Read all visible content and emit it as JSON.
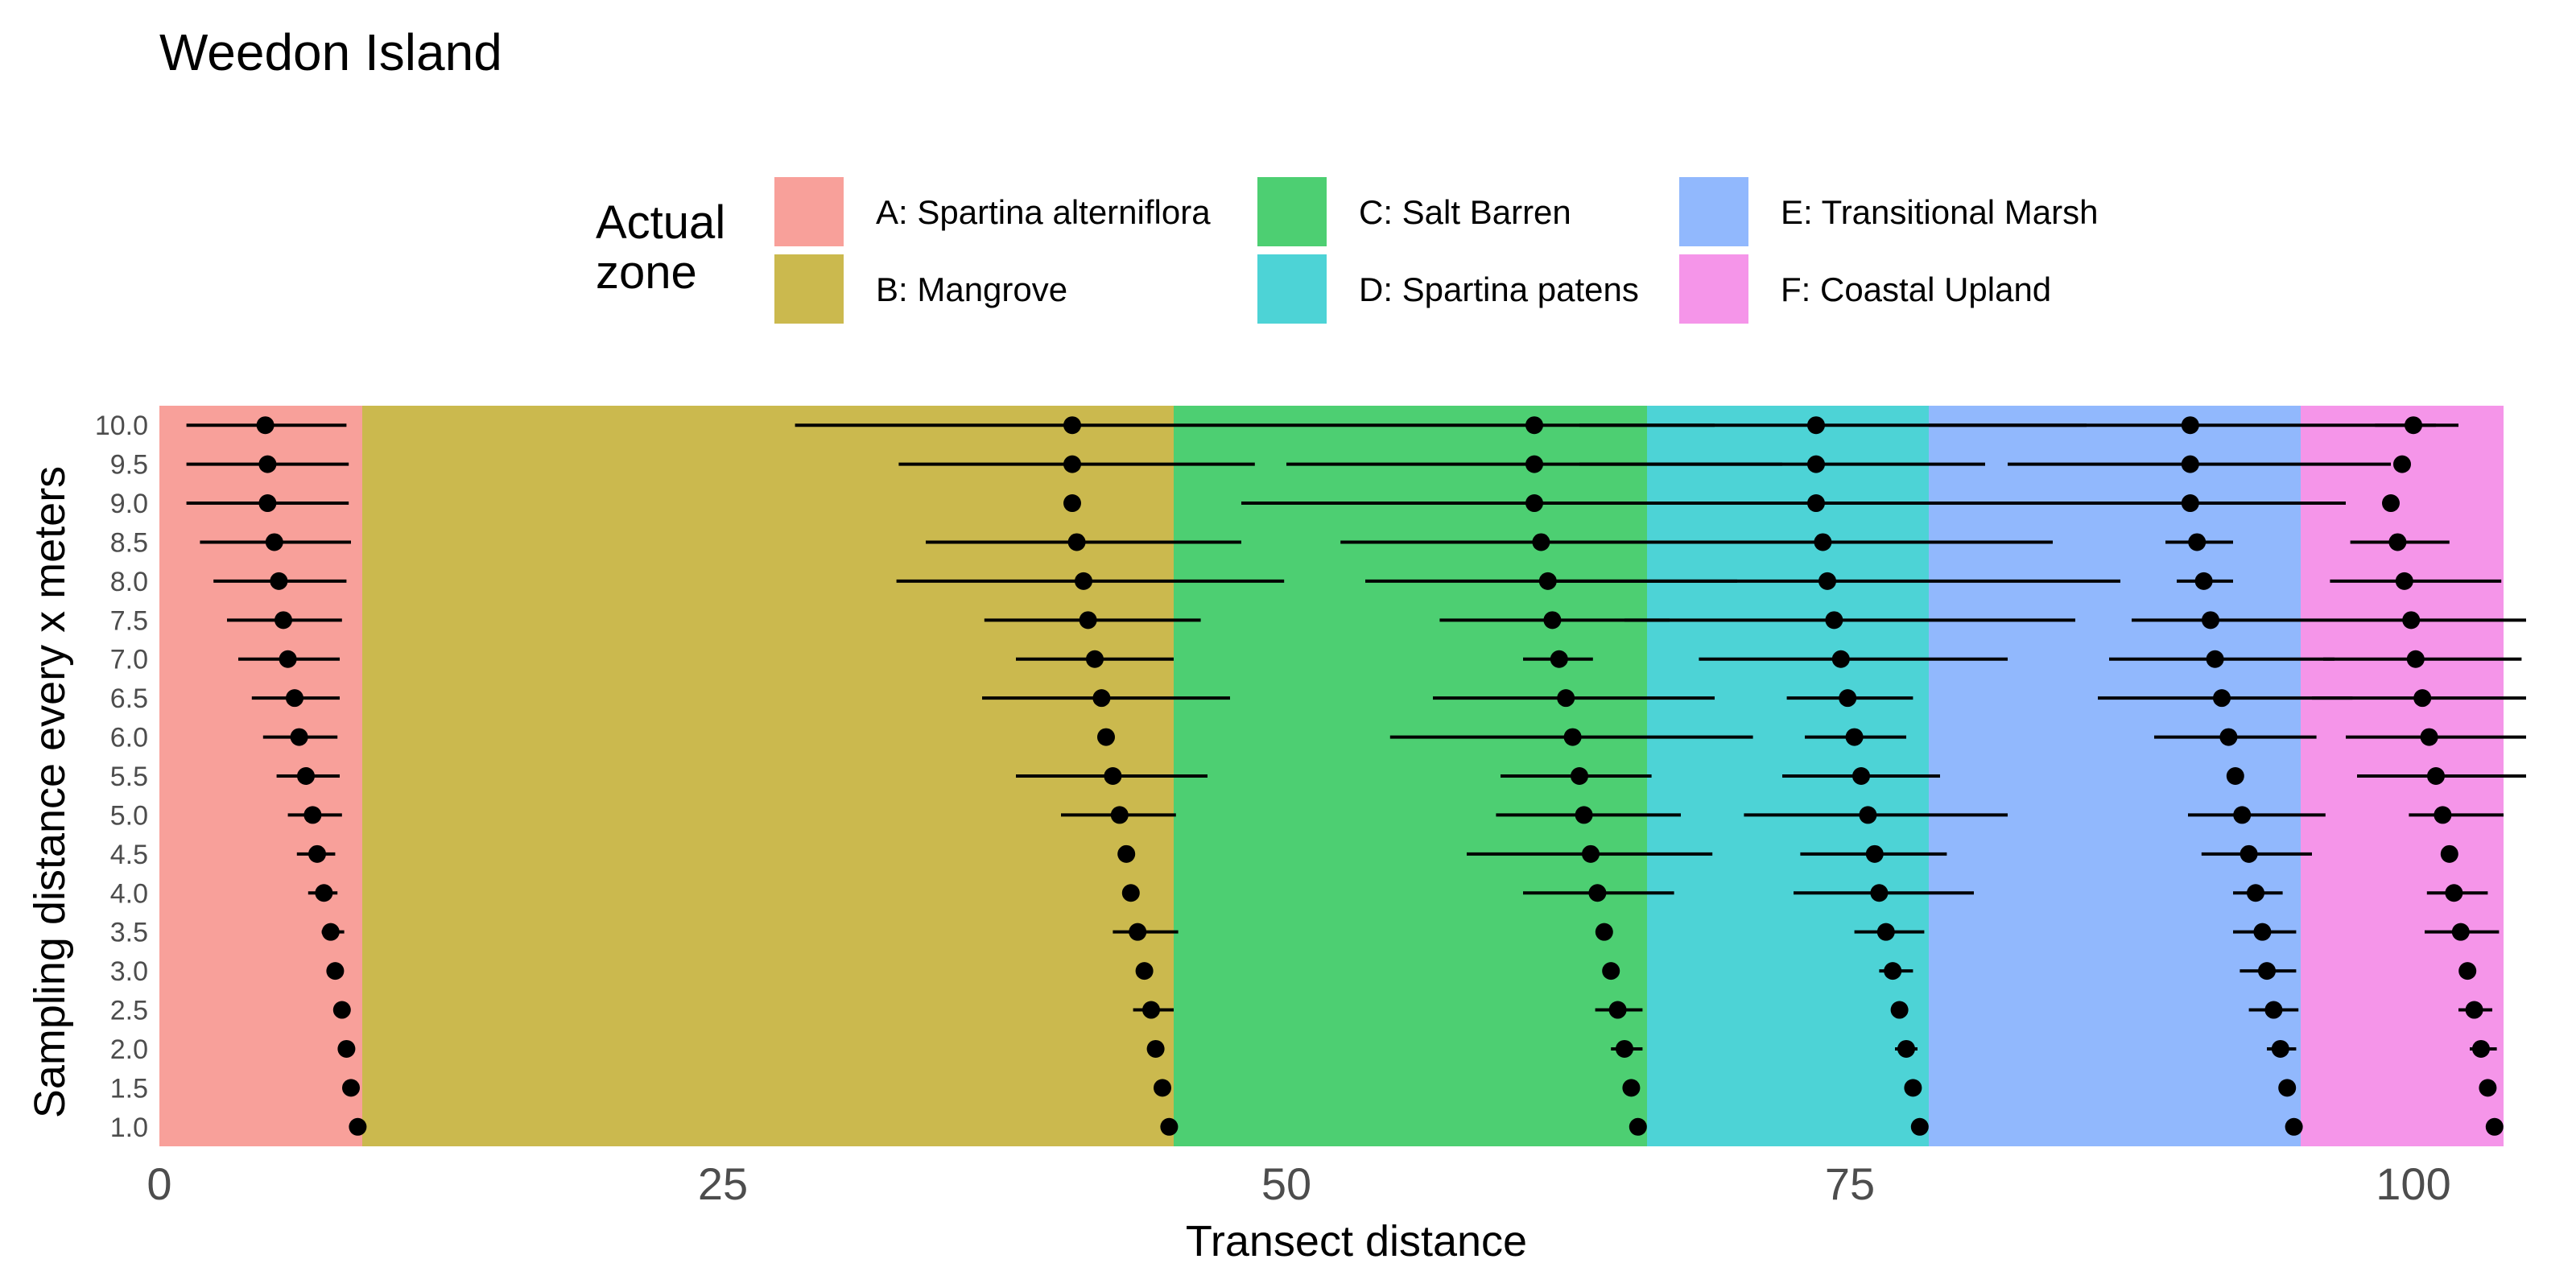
{
  "chart_data": {
    "type": "scatter",
    "title": "Weedon Island",
    "xlabel": "Transect distance",
    "ylabel": "Sampling distance every x meters",
    "xlim": [
      0,
      104
    ],
    "xticks": [
      0,
      25,
      50,
      75,
      100
    ],
    "ylim": [
      0.75,
      10.25
    ],
    "yticks": [
      "1.0",
      "1.5",
      "2.0",
      "2.5",
      "3.0",
      "3.5",
      "4.0",
      "4.5",
      "5.0",
      "5.5",
      "6.0",
      "6.5",
      "7.0",
      "7.5",
      "8.0",
      "8.5",
      "9.0",
      "9.5",
      "10.0"
    ],
    "grid": false,
    "legend": {
      "title": "Actual zone",
      "placement": "top",
      "entries": [
        {
          "label": "A: Spartina alterniflora",
          "color": "#F8A09A"
        },
        {
          "label": "B: Mangrove",
          "color": "#CBB94E"
        },
        {
          "label": "C: Salt Barren",
          "color": "#4DCF72"
        },
        {
          "label": "D: Spartina patens",
          "color": "#4DD3D6"
        },
        {
          "label": "E: Transitional Marsh",
          "color": "#91B8FD"
        },
        {
          "label": "F: Coastal Upland",
          "color": "#F595E9"
        }
      ]
    },
    "zones": [
      {
        "label": "A: Spartina alterniflora",
        "start": 0,
        "end": 9,
        "color": "#F8A09A"
      },
      {
        "label": "B: Mangrove",
        "start": 9,
        "end": 45,
        "color": "#CBB94E"
      },
      {
        "label": "C: Salt Barren",
        "start": 45,
        "end": 66,
        "color": "#4DCF72"
      },
      {
        "label": "D: Spartina patens",
        "start": 66,
        "end": 78.5,
        "color": "#4DD3D6"
      },
      {
        "label": "E: Transitional Marsh",
        "start": 78.5,
        "end": 95,
        "color": "#91B8FD"
      },
      {
        "label": "F: Coastal Upland",
        "start": 95,
        "end": 104,
        "color": "#F595E9"
      }
    ],
    "series": [
      {
        "boundary": "A|B",
        "points": [
          {
            "y": 1.0,
            "x": 8.8,
            "lo": 8.8,
            "hi": 8.8
          },
          {
            "y": 1.5,
            "x": 8.5,
            "lo": 8.5,
            "hi": 8.5
          },
          {
            "y": 2.0,
            "x": 8.3,
            "lo": 8.3,
            "hi": 8.3
          },
          {
            "y": 2.5,
            "x": 8.1,
            "lo": 8.1,
            "hi": 8.1
          },
          {
            "y": 3.0,
            "x": 7.8,
            "lo": 7.8,
            "hi": 7.8
          },
          {
            "y": 3.5,
            "x": 7.6,
            "lo": 7.2,
            "hi": 8.2
          },
          {
            "y": 4.0,
            "x": 7.3,
            "lo": 6.6,
            "hi": 7.9
          },
          {
            "y": 4.5,
            "x": 7.0,
            "lo": 6.1,
            "hi": 7.8
          },
          {
            "y": 5.0,
            "x": 6.8,
            "lo": 5.7,
            "hi": 8.1
          },
          {
            "y": 5.5,
            "x": 6.5,
            "lo": 5.2,
            "hi": 8.0
          },
          {
            "y": 6.0,
            "x": 6.2,
            "lo": 4.6,
            "hi": 7.9
          },
          {
            "y": 6.5,
            "x": 6.0,
            "lo": 4.1,
            "hi": 8.0
          },
          {
            "y": 7.0,
            "x": 5.7,
            "lo": 3.5,
            "hi": 8.0
          },
          {
            "y": 7.5,
            "x": 5.5,
            "lo": 3.0,
            "hi": 8.1
          },
          {
            "y": 8.0,
            "x": 5.3,
            "lo": 2.4,
            "hi": 8.3
          },
          {
            "y": 8.5,
            "x": 5.1,
            "lo": 1.8,
            "hi": 8.5
          },
          {
            "y": 9.0,
            "x": 4.8,
            "lo": 1.2,
            "hi": 8.4
          },
          {
            "y": 9.5,
            "x": 4.8,
            "lo": 1.2,
            "hi": 8.4
          },
          {
            "y": 10.0,
            "x": 4.7,
            "lo": 1.2,
            "hi": 8.3
          }
        ]
      },
      {
        "boundary": "B|C",
        "points": [
          {
            "y": 1.0,
            "x": 44.8,
            "lo": 44.8,
            "hi": 44.8
          },
          {
            "y": 1.5,
            "x": 44.5,
            "lo": 44.5,
            "hi": 44.5
          },
          {
            "y": 2.0,
            "x": 44.2,
            "lo": 44.2,
            "hi": 44.2
          },
          {
            "y": 2.5,
            "x": 44.0,
            "lo": 43.2,
            "hi": 45.0
          },
          {
            "y": 3.0,
            "x": 43.7,
            "lo": 43.7,
            "hi": 43.7
          },
          {
            "y": 3.5,
            "x": 43.4,
            "lo": 42.3,
            "hi": 45.2
          },
          {
            "y": 4.0,
            "x": 43.1,
            "lo": 43.1,
            "hi": 43.1
          },
          {
            "y": 4.5,
            "x": 42.9,
            "lo": 42.9,
            "hi": 42.9
          },
          {
            "y": 5.0,
            "x": 42.6,
            "lo": 40.0,
            "hi": 45.1
          },
          {
            "y": 5.5,
            "x": 42.3,
            "lo": 38.0,
            "hi": 46.5
          },
          {
            "y": 6.0,
            "x": 42.0,
            "lo": 42.0,
            "hi": 42.0
          },
          {
            "y": 6.5,
            "x": 41.8,
            "lo": 36.5,
            "hi": 47.5
          },
          {
            "y": 7.0,
            "x": 41.5,
            "lo": 38.0,
            "hi": 45.0
          },
          {
            "y": 7.5,
            "x": 41.2,
            "lo": 36.6,
            "hi": 46.2
          },
          {
            "y": 8.0,
            "x": 41.0,
            "lo": 32.7,
            "hi": 49.9
          },
          {
            "y": 8.5,
            "x": 40.7,
            "lo": 34.0,
            "hi": 48.0
          },
          {
            "y": 9.0,
            "x": 40.5,
            "lo": 40.5,
            "hi": 40.5
          },
          {
            "y": 9.5,
            "x": 40.5,
            "lo": 32.8,
            "hi": 48.6
          },
          {
            "y": 10.0,
            "x": 40.5,
            "lo": 28.2,
            "hi": 53.5
          }
        ]
      },
      {
        "boundary": "C|D",
        "points": [
          {
            "y": 1.0,
            "x": 65.6,
            "lo": 65.6,
            "hi": 65.6
          },
          {
            "y": 1.5,
            "x": 65.3,
            "lo": 65.3,
            "hi": 65.3
          },
          {
            "y": 2.0,
            "x": 65.0,
            "lo": 64.4,
            "hi": 65.8
          },
          {
            "y": 2.5,
            "x": 64.7,
            "lo": 63.7,
            "hi": 65.8
          },
          {
            "y": 3.0,
            "x": 64.4,
            "lo": 64.4,
            "hi": 64.4
          },
          {
            "y": 3.5,
            "x": 64.1,
            "lo": 64.1,
            "hi": 64.1
          },
          {
            "y": 4.0,
            "x": 63.8,
            "lo": 60.5,
            "hi": 67.2
          },
          {
            "y": 4.5,
            "x": 63.5,
            "lo": 58.0,
            "hi": 68.9
          },
          {
            "y": 5.0,
            "x": 63.2,
            "lo": 59.3,
            "hi": 67.5
          },
          {
            "y": 5.5,
            "x": 63.0,
            "lo": 59.5,
            "hi": 66.2
          },
          {
            "y": 6.0,
            "x": 62.7,
            "lo": 54.6,
            "hi": 70.7
          },
          {
            "y": 6.5,
            "x": 62.4,
            "lo": 56.5,
            "hi": 69.0
          },
          {
            "y": 7.0,
            "x": 62.1,
            "lo": 60.5,
            "hi": 63.6
          },
          {
            "y": 7.5,
            "x": 61.8,
            "lo": 56.8,
            "hi": 67.0
          },
          {
            "y": 8.0,
            "x": 61.6,
            "lo": 53.5,
            "hi": 70.0
          },
          {
            "y": 8.5,
            "x": 61.3,
            "lo": 52.4,
            "hi": 70.2
          },
          {
            "y": 9.0,
            "x": 61.0,
            "lo": 48.0,
            "hi": 74.0
          },
          {
            "y": 9.5,
            "x": 61.0,
            "lo": 50.0,
            "hi": 72.0
          },
          {
            "y": 10.0,
            "x": 61.0,
            "lo": 53.5,
            "hi": 69.0
          }
        ]
      },
      {
        "boundary": "D|E",
        "points": [
          {
            "y": 1.0,
            "x": 78.1,
            "lo": 78.1,
            "hi": 78.1
          },
          {
            "y": 1.5,
            "x": 77.8,
            "lo": 77.8,
            "hi": 77.8
          },
          {
            "y": 2.0,
            "x": 77.5,
            "lo": 77.0,
            "hi": 78.0
          },
          {
            "y": 2.5,
            "x": 77.2,
            "lo": 77.2,
            "hi": 77.2
          },
          {
            "y": 3.0,
            "x": 76.9,
            "lo": 76.3,
            "hi": 77.8
          },
          {
            "y": 3.5,
            "x": 76.6,
            "lo": 75.2,
            "hi": 78.3
          },
          {
            "y": 4.0,
            "x": 76.3,
            "lo": 72.5,
            "hi": 80.5
          },
          {
            "y": 4.5,
            "x": 76.1,
            "lo": 72.8,
            "hi": 79.3
          },
          {
            "y": 5.0,
            "x": 75.8,
            "lo": 70.3,
            "hi": 82.0
          },
          {
            "y": 5.5,
            "x": 75.5,
            "lo": 72.0,
            "hi": 79.0
          },
          {
            "y": 6.0,
            "x": 75.2,
            "lo": 73.0,
            "hi": 77.5
          },
          {
            "y": 6.5,
            "x": 74.9,
            "lo": 72.2,
            "hi": 77.8
          },
          {
            "y": 7.0,
            "x": 74.6,
            "lo": 68.3,
            "hi": 82.0
          },
          {
            "y": 7.5,
            "x": 74.3,
            "lo": 65.0,
            "hi": 85.0
          },
          {
            "y": 8.0,
            "x": 74.0,
            "lo": 62.0,
            "hi": 87.0
          },
          {
            "y": 8.5,
            "x": 73.8,
            "lo": 65.0,
            "hi": 84.0
          },
          {
            "y": 9.0,
            "x": 73.5,
            "lo": 63.0,
            "hi": 85.5
          },
          {
            "y": 9.5,
            "x": 73.5,
            "lo": 63.0,
            "hi": 81.0
          },
          {
            "y": 10.0,
            "x": 73.5,
            "lo": 63.0,
            "hi": 85.5
          }
        ]
      },
      {
        "boundary": "E|F",
        "points": [
          {
            "y": 1.0,
            "x": 94.7,
            "lo": 94.7,
            "hi": 94.7
          },
          {
            "y": 1.5,
            "x": 94.4,
            "lo": 94.4,
            "hi": 94.4
          },
          {
            "y": 2.0,
            "x": 94.1,
            "lo": 93.5,
            "hi": 94.8
          },
          {
            "y": 2.5,
            "x": 93.8,
            "lo": 92.7,
            "hi": 94.9
          },
          {
            "y": 3.0,
            "x": 93.5,
            "lo": 92.3,
            "hi": 94.8
          },
          {
            "y": 3.5,
            "x": 93.3,
            "lo": 92.0,
            "hi": 94.8
          },
          {
            "y": 4.0,
            "x": 93.0,
            "lo": 92.0,
            "hi": 94.2
          },
          {
            "y": 4.5,
            "x": 92.7,
            "lo": 90.6,
            "hi": 95.5
          },
          {
            "y": 5.0,
            "x": 92.4,
            "lo": 90.0,
            "hi": 96.1
          },
          {
            "y": 5.5,
            "x": 92.1,
            "lo": 92.1,
            "hi": 92.1
          },
          {
            "y": 6.0,
            "x": 91.8,
            "lo": 88.5,
            "hi": 95.7
          },
          {
            "y": 6.5,
            "x": 91.5,
            "lo": 86.0,
            "hi": 97.3
          },
          {
            "y": 7.0,
            "x": 91.2,
            "lo": 86.5,
            "hi": 96.5
          },
          {
            "y": 7.5,
            "x": 91.0,
            "lo": 87.5,
            "hi": 95.0
          },
          {
            "y": 8.0,
            "x": 90.7,
            "lo": 89.5,
            "hi": 92.0
          },
          {
            "y": 8.5,
            "x": 90.4,
            "lo": 89.0,
            "hi": 92.0
          },
          {
            "y": 9.0,
            "x": 90.1,
            "lo": 85.0,
            "hi": 97.0
          },
          {
            "y": 9.5,
            "x": 90.1,
            "lo": 82.0,
            "hi": 99.0
          },
          {
            "y": 10.0,
            "x": 90.1,
            "lo": 78.5,
            "hi": 101.0
          }
        ]
      },
      {
        "boundary": "F-end",
        "points": [
          {
            "y": 1.0,
            "x": 103.6,
            "lo": 103.6,
            "hi": 103.6
          },
          {
            "y": 1.5,
            "x": 103.3,
            "lo": 103.3,
            "hi": 103.3
          },
          {
            "y": 2.0,
            "x": 103.0,
            "lo": 102.5,
            "hi": 103.7
          },
          {
            "y": 2.5,
            "x": 102.7,
            "lo": 102.0,
            "hi": 103.5
          },
          {
            "y": 3.0,
            "x": 102.4,
            "lo": 102.4,
            "hi": 102.4
          },
          {
            "y": 3.5,
            "x": 102.1,
            "lo": 100.5,
            "hi": 103.8
          },
          {
            "y": 4.0,
            "x": 101.8,
            "lo": 100.6,
            "hi": 103.3
          },
          {
            "y": 4.5,
            "x": 101.6,
            "lo": 101.6,
            "hi": 101.6
          },
          {
            "y": 5.0,
            "x": 101.3,
            "lo": 99.8,
            "hi": 104.0
          },
          {
            "y": 5.5,
            "x": 101.0,
            "lo": 97.5,
            "hi": 105.0
          },
          {
            "y": 6.0,
            "x": 100.7,
            "lo": 97.0,
            "hi": 105.0
          },
          {
            "y": 6.5,
            "x": 100.4,
            "lo": 95.5,
            "hi": 105.0
          },
          {
            "y": 7.0,
            "x": 100.1,
            "lo": 96.0,
            "hi": 104.8
          },
          {
            "y": 7.5,
            "x": 99.9,
            "lo": 95.0,
            "hi": 105.0
          },
          {
            "y": 8.0,
            "x": 99.6,
            "lo": 96.3,
            "hi": 103.9
          },
          {
            "y": 8.5,
            "x": 99.3,
            "lo": 97.2,
            "hi": 101.6
          },
          {
            "y": 9.0,
            "x": 99.0,
            "lo": 99.0,
            "hi": 99.0
          },
          {
            "y": 9.5,
            "x": 99.5,
            "lo": 99.5,
            "hi": 99.5
          },
          {
            "y": 10.0,
            "x": 100.0,
            "lo": 98.3,
            "hi": 102.0
          }
        ]
      }
    ]
  }
}
